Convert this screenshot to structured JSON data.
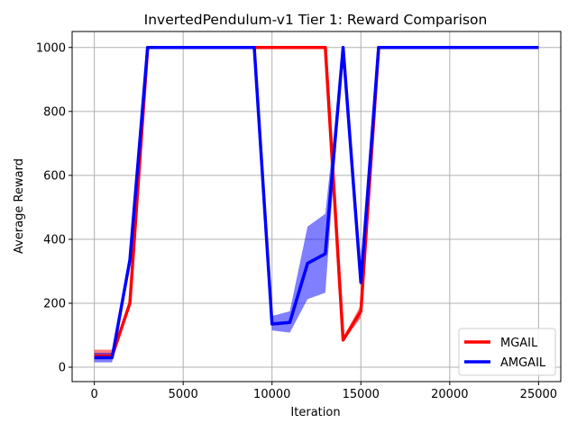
{
  "chart_data": {
    "type": "line",
    "title": "InvertedPendulum-v1 Tier 1: Reward Comparison",
    "xlabel": "Iteration",
    "ylabel": "Average Reward",
    "xlim": [
      -1250,
      26250
    ],
    "ylim": [
      -45,
      1050
    ],
    "xticks": [
      0,
      5000,
      10000,
      15000,
      20000,
      25000
    ],
    "yticks": [
      0,
      200,
      400,
      600,
      800,
      1000
    ],
    "grid": true,
    "legend_position": "lower-right",
    "series": [
      {
        "name": "MGAIL",
        "color": "#ff0000",
        "band_color": "#ff0000",
        "x": [
          0,
          1000,
          2000,
          3000,
          4000,
          5000,
          6000,
          7000,
          8000,
          9000,
          10000,
          11000,
          12000,
          13000,
          14000,
          15000,
          16000,
          17000,
          18000,
          19000,
          20000,
          21000,
          22000,
          23000,
          24000,
          25000
        ],
        "y": [
          35,
          35,
          200,
          1000,
          1000,
          1000,
          1000,
          1000,
          1000,
          1000,
          1000,
          1000,
          1000,
          1000,
          85,
          175,
          1000,
          1000,
          1000,
          1000,
          1000,
          1000,
          1000,
          1000,
          1000,
          1000
        ],
        "y_low": [
          25,
          25,
          195,
          1000,
          1000,
          1000,
          1000,
          1000,
          1000,
          1000,
          1000,
          1000,
          1000,
          1000,
          80,
          155,
          1000,
          1000,
          1000,
          1000,
          1000,
          1000,
          1000,
          1000,
          1000,
          1000
        ],
        "y_high": [
          55,
          55,
          205,
          1000,
          1000,
          1000,
          1000,
          1000,
          1000,
          1000,
          1000,
          1000,
          1000,
          1000,
          92,
          195,
          1000,
          1000,
          1000,
          1000,
          1000,
          1000,
          1000,
          1000,
          1000,
          1000
        ]
      },
      {
        "name": "AMGAIL",
        "color": "#0000ff",
        "band_color": "#0000ff",
        "x": [
          0,
          1000,
          2000,
          3000,
          4000,
          5000,
          6000,
          7000,
          8000,
          9000,
          10000,
          11000,
          12000,
          13000,
          14000,
          15000,
          16000,
          17000,
          18000,
          19000,
          20000,
          21000,
          22000,
          23000,
          24000,
          25000
        ],
        "y": [
          30,
          30,
          335,
          1000,
          1000,
          1000,
          1000,
          1000,
          1000,
          1000,
          135,
          140,
          325,
          355,
          1000,
          265,
          1000,
          1000,
          1000,
          1000,
          1000,
          1000,
          1000,
          1000,
          1000,
          1000
        ],
        "y_low": [
          15,
          15,
          330,
          1000,
          1000,
          1000,
          1000,
          1000,
          1000,
          1000,
          115,
          108,
          213,
          233,
          1000,
          260,
          1000,
          1000,
          1000,
          1000,
          1000,
          1000,
          1000,
          1000,
          1000,
          1000
        ],
        "y_high": [
          45,
          45,
          340,
          1000,
          1000,
          1000,
          1000,
          1000,
          1000,
          1000,
          160,
          175,
          440,
          480,
          1000,
          270,
          1000,
          1000,
          1000,
          1000,
          1000,
          1000,
          1000,
          1000,
          1000,
          1000
        ]
      }
    ]
  }
}
